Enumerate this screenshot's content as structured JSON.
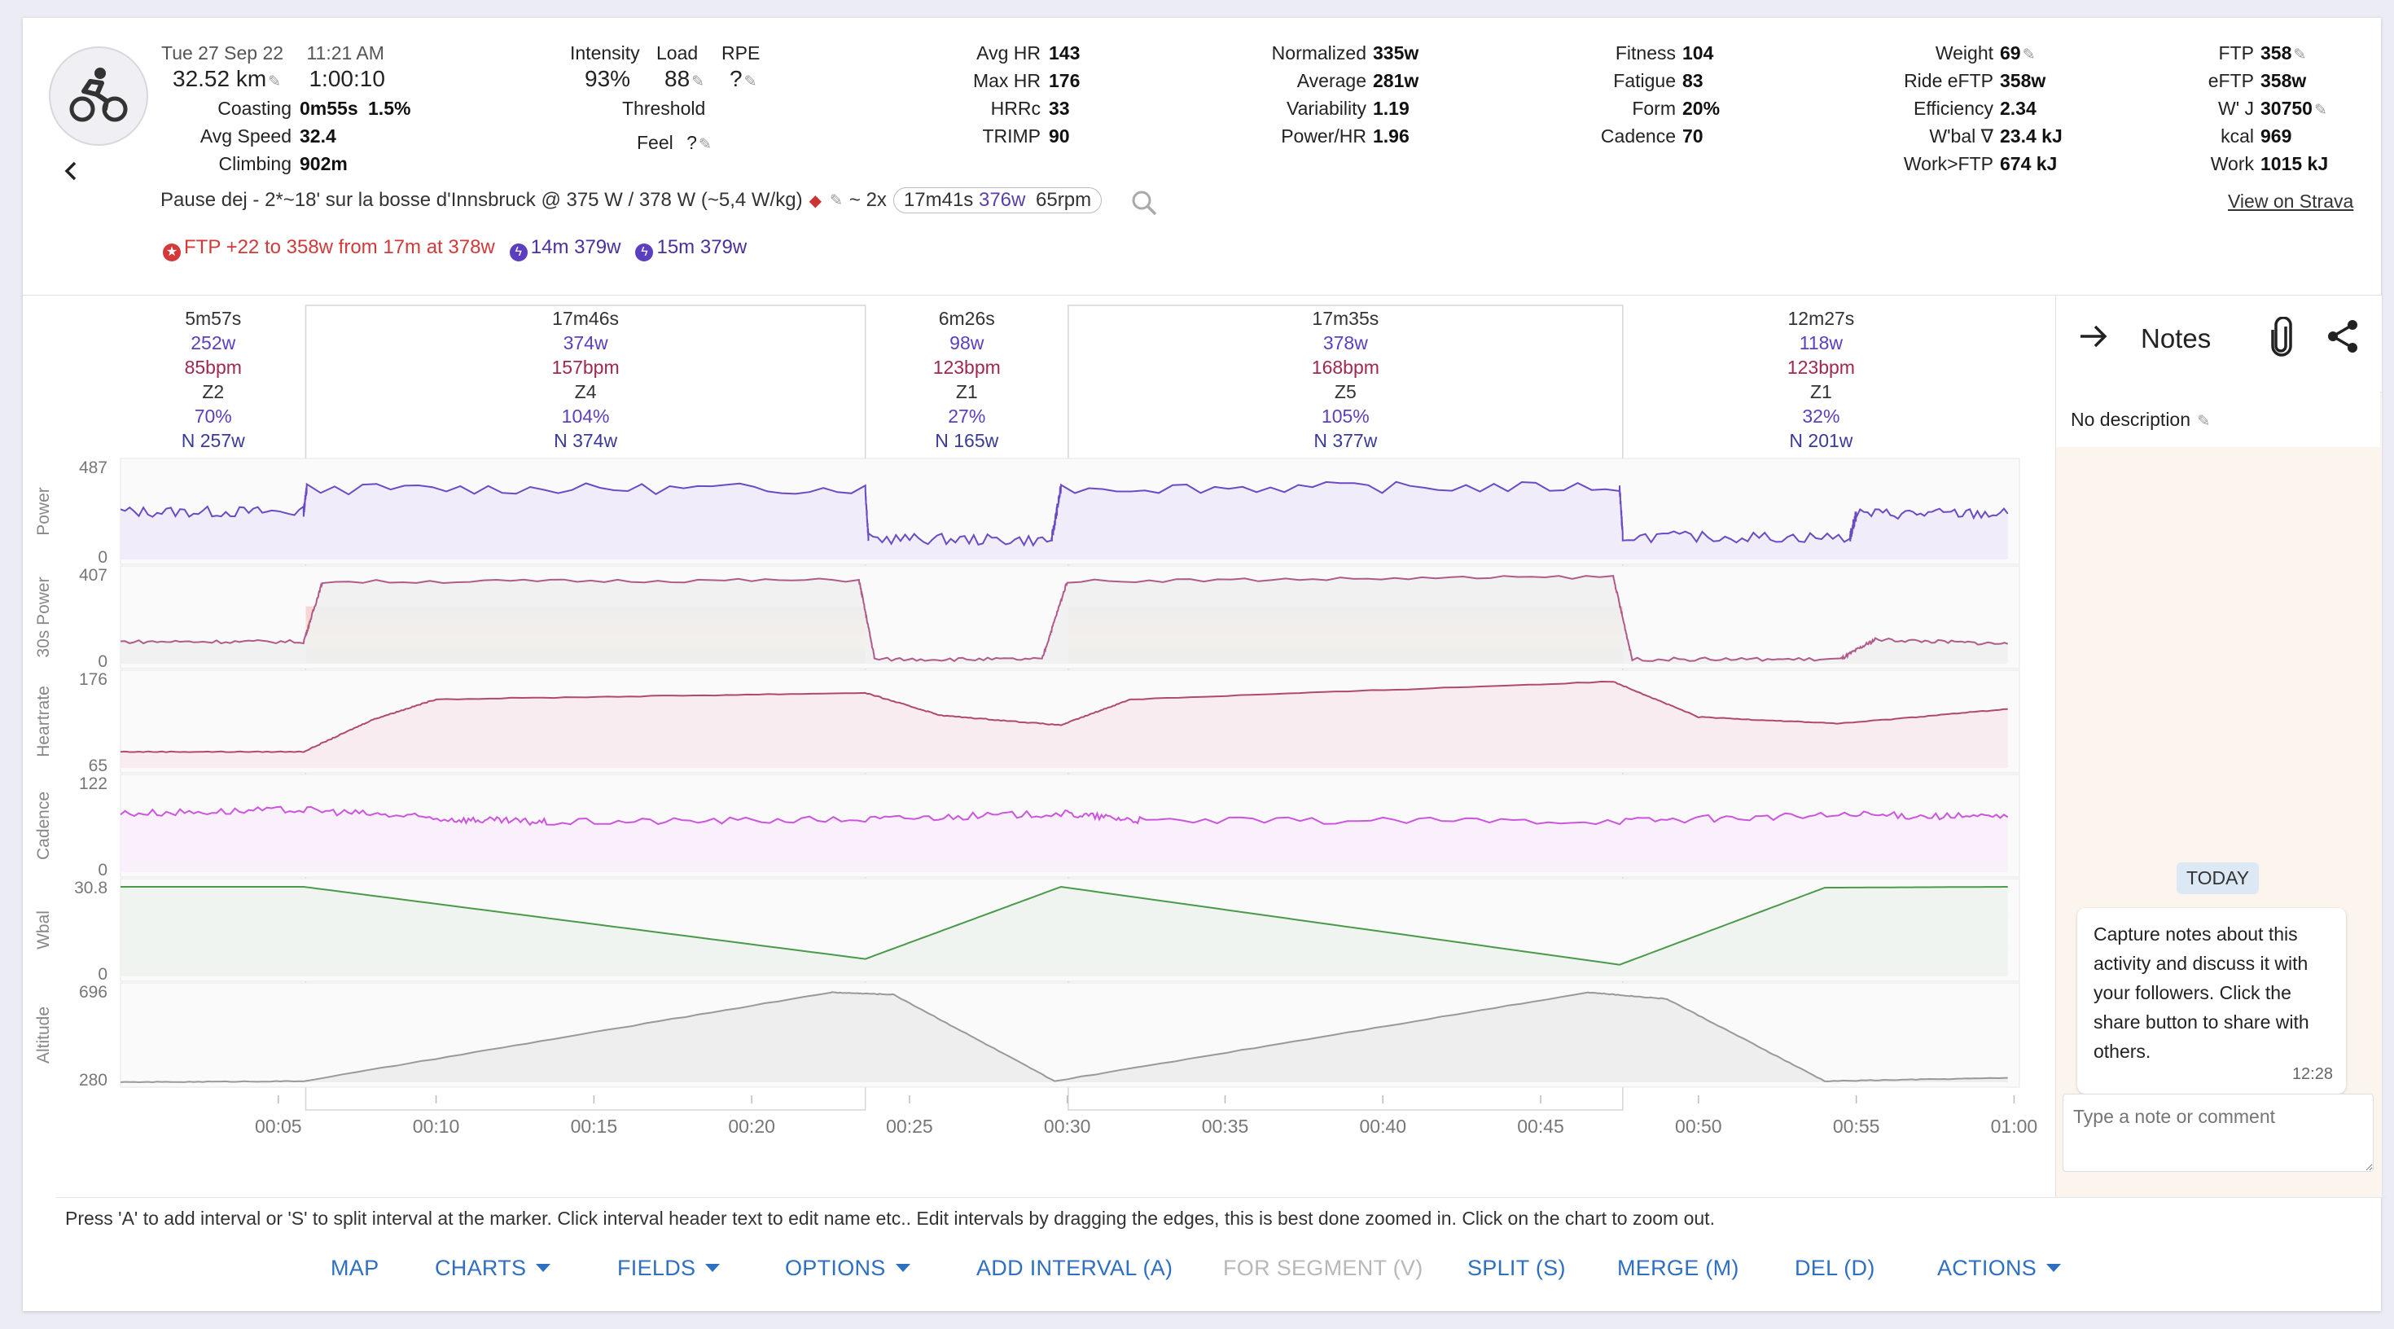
{
  "activity": {
    "date": "Tue 27 Sep 22",
    "time": "11:21 AM",
    "distance": "32.52 km",
    "duration": "1:00:10",
    "coasting_label": "Coasting",
    "coasting_value": "0m55s",
    "coasting_pct": "1.5%",
    "avg_speed_label": "Avg Speed",
    "avg_speed_value": "32.4",
    "climbing_label": "Climbing",
    "climbing_value": "902m"
  },
  "load": {
    "intensity_label": "Intensity",
    "intensity_value": "93%",
    "load_label": "Load",
    "load_value": "88",
    "rpe_label": "RPE",
    "rpe_value": "?",
    "threshold_label": "Threshold",
    "feel_label": "Feel",
    "feel_value": "?"
  },
  "hr": {
    "avg_label": "Avg HR",
    "avg_value": "143",
    "max_label": "Max HR",
    "max_value": "176",
    "hrrc_label": "HRRc",
    "hrrc_value": "33",
    "trimp_label": "TRIMP",
    "trimp_value": "90"
  },
  "power": {
    "normalized_label": "Normalized",
    "normalized_value": "335w",
    "average_label": "Average",
    "average_value": "281w",
    "variability_label": "Variability",
    "variability_value": "1.19",
    "power_hr_label": "Power/HR",
    "power_hr_value": "1.96"
  },
  "fitness": {
    "fitness_label": "Fitness",
    "fitness_value": "104",
    "fatigue_label": "Fatigue",
    "fatigue_value": "83",
    "form_label": "Form",
    "form_value": "20%",
    "cadence_label": "Cadence",
    "cadence_value": "70"
  },
  "body": {
    "weight_label": "Weight",
    "weight_value": "69",
    "ride_eftp_label": "Ride eFTP",
    "ride_eftp_value": "358w",
    "efficiency_label": "Efficiency",
    "efficiency_value": "2.34",
    "wbal_label": "W'bal ∇",
    "wbal_value": "23.4 kJ",
    "work_ftp_label": "Work>FTP",
    "work_ftp_value": "674 kJ"
  },
  "ftp": {
    "ftp_label": "FTP",
    "ftp_value": "358",
    "eftp_label": "eFTP",
    "eftp_value": "358w",
    "wj_label": "W' J",
    "wj_value": "30750",
    "kcal_label": "kcal",
    "kcal_value": "969",
    "work_label": "Work",
    "work_value": "1015 kJ"
  },
  "description": {
    "text": "Pause dej - 2*~18' sur la bosse d'Innsbruck @ 375 W / 378 W (~5,4 W/kg)",
    "match_prefix": "~ 2x",
    "match_time": "17m41s",
    "match_power": "376w",
    "match_cadence": "65rpm",
    "strava_link": "View on Strava"
  },
  "badges": {
    "ftp": "FTP +22 to 358w from 17m at 378w",
    "best1": "14m 379w",
    "best2": "15m 379w"
  },
  "intervals": [
    {
      "duration": "5m57s",
      "power": "252w",
      "hr": "85bpm",
      "zone": "Z2",
      "pct": "70%",
      "np": "N 257w"
    },
    {
      "duration": "17m46s",
      "power": "374w",
      "hr": "157bpm",
      "zone": "Z4",
      "pct": "104%",
      "np": "N 374w"
    },
    {
      "duration": "6m26s",
      "power": "98w",
      "hr": "123bpm",
      "zone": "Z1",
      "pct": "27%",
      "np": "N 165w"
    },
    {
      "duration": "17m35s",
      "power": "378w",
      "hr": "168bpm",
      "zone": "Z5",
      "pct": "105%",
      "np": "N 377w"
    },
    {
      "duration": "12m27s",
      "power": "118w",
      "hr": "123bpm",
      "zone": "Z1",
      "pct": "32%",
      "np": "N 201w"
    }
  ],
  "chart_data": {
    "type": "line",
    "x_unit": "elapsed time (h:mm)",
    "x_range": [
      "00:00",
      "01:00"
    ],
    "x_ticks": [
      "00:05",
      "00:10",
      "00:15",
      "00:20",
      "00:25",
      "00:30",
      "00:35",
      "00:40",
      "00:45",
      "00:50",
      "00:55",
      "01:00"
    ],
    "series": [
      {
        "name": "Power",
        "ylim": [
          0,
          487
        ],
        "color": "#6a4bc4",
        "x": [
          0,
          5.8,
          5.9,
          23.6,
          23.7,
          29.5,
          29.8,
          47.5,
          47.6,
          54.8,
          55.0,
          59.8
        ],
        "y": [
          250,
          250,
          370,
          372,
          110,
          100,
          375,
          380,
          120,
          115,
          240,
          240
        ]
      },
      {
        "name": "30s Power",
        "ylim": [
          0,
          407
        ],
        "color": "#b05a8a",
        "x": [
          0,
          5.8,
          6.4,
          23.4,
          23.9,
          29.2,
          30.0,
          47.3,
          47.9,
          54.5,
          55.6,
          59.8
        ],
        "y": [
          100,
          100,
          372,
          380,
          20,
          20,
          375,
          395,
          20,
          20,
          110,
          90
        ]
      },
      {
        "name": "Heartrate",
        "ylim": [
          65,
          176
        ],
        "color": "#b04a6a",
        "x": [
          0,
          5.8,
          8,
          10,
          23.6,
          26,
          29.8,
          32,
          47.3,
          50,
          54.5,
          59.8
        ],
        "y": [
          85,
          85,
          125,
          150,
          158,
          130,
          118,
          150,
          172,
          128,
          120,
          138
        ]
      },
      {
        "name": "Cadence",
        "ylim": [
          0,
          122
        ],
        "color": "#cc55dd",
        "x": [
          0,
          5.8,
          10.5,
          13.5,
          23.6,
          29.8,
          32.5,
          47.5,
          55,
          59.8
        ],
        "y": [
          80,
          85,
          72,
          68,
          72,
          80,
          70,
          70,
          78,
          75
        ]
      },
      {
        "name": "Wbal",
        "ylim": [
          0.0,
          30.8
        ],
        "color": "#4a9a4a",
        "x": [
          0,
          5.8,
          23.6,
          29.8,
          47.5,
          54.0,
          59.8
        ],
        "y": [
          30.8,
          30.8,
          6.0,
          30.8,
          4.0,
          30.5,
          30.8
        ]
      },
      {
        "name": "Altitude",
        "ylim": [
          280,
          696
        ],
        "color": "#999999",
        "x": [
          0,
          5.8,
          22.5,
          24.5,
          29.6,
          46.5,
          49.0,
          54.0,
          59.8
        ],
        "y": [
          280,
          285,
          690,
          680,
          285,
          690,
          660,
          285,
          300
        ]
      }
    ]
  },
  "notes": {
    "title": "Notes",
    "no_description": "No description",
    "today": "TODAY",
    "message": "Capture notes about this activity and discuss it with your followers. Click the share button to share with others.",
    "message_time": "12:28",
    "input_placeholder": "Type a note or comment"
  },
  "hint": "Press 'A' to add interval or 'S' to split interval at the marker. Click interval header text to edit name etc.. Edit intervals by dragging the edges, this is best done zoomed in. Click on the chart to zoom out.",
  "toolbar": {
    "map": "MAP",
    "charts": "CHARTS",
    "fields": "FIELDS",
    "options": "OPTIONS",
    "add_interval": "ADD INTERVAL (A)",
    "for_segment": "FOR SEGMENT (V)",
    "split": "SPLIT (S)",
    "merge": "MERGE (M)",
    "del": "DEL (D)",
    "actions": "ACTIONS"
  },
  "colors": {
    "accent": "#2f6fc2",
    "power": "#6a4bc4",
    "heartrate": "#b04a6a",
    "cadence": "#cc55dd",
    "wbal": "#4a9a4a",
    "ftp_badge": "#d23a3a"
  },
  "icons": {
    "avatar": "cyclist-icon",
    "back": "chevron-left-icon",
    "search": "search-icon",
    "notes_close": "arrow-right-icon",
    "attach": "paperclip-icon",
    "share": "share-icon",
    "edit": "pencil-icon"
  }
}
